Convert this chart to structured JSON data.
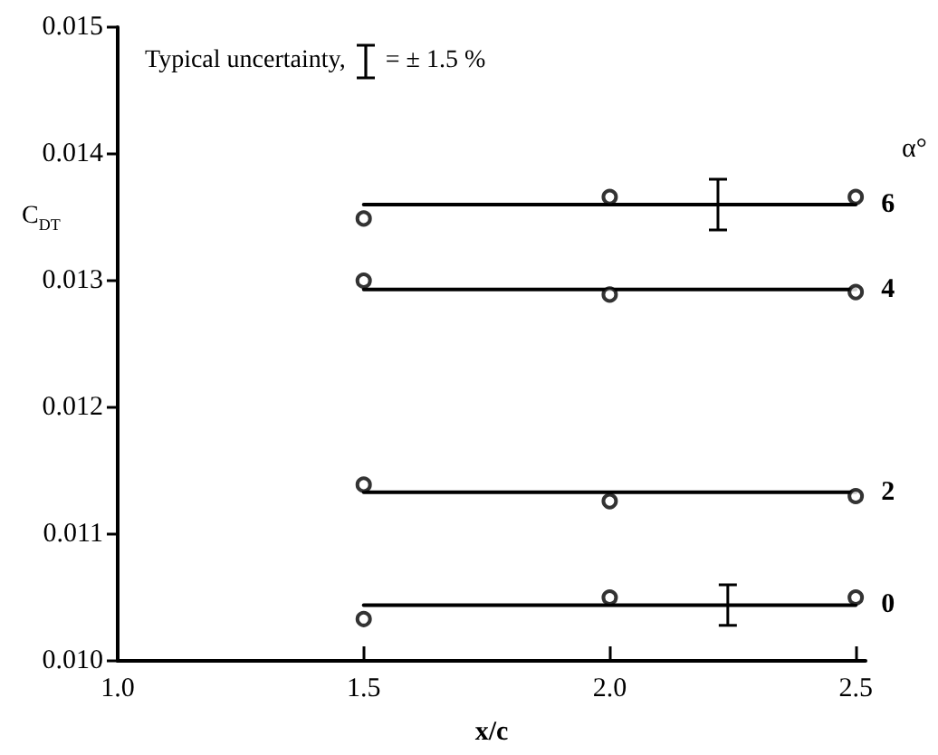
{
  "chart_data": {
    "type": "scatter",
    "xlabel": "x/c",
    "ylabel": "C$_{DT}$",
    "legend_title": "α°",
    "annotations": [
      "Typical uncertainty,",
      "= ± 1.5 %"
    ],
    "xlim": [
      1.0,
      2.52
    ],
    "xticks": [
      {
        "value": 1.0,
        "label": "1.0"
      },
      {
        "value": 1.5,
        "label": "1.5"
      },
      {
        "value": 2.0,
        "label": "2.0"
      },
      {
        "value": 2.5,
        "label": "2.5"
      }
    ],
    "ylim": [
      0.01,
      0.015
    ],
    "yticks": [
      {
        "value": 0.01,
        "label": "0.010"
      },
      {
        "value": 0.011,
        "label": "0.011"
      },
      {
        "value": 0.012,
        "label": "0.012"
      },
      {
        "value": 0.013,
        "label": "0.013"
      },
      {
        "value": 0.014,
        "label": "0.014"
      },
      {
        "value": 0.015,
        "label": "0.015"
      }
    ],
    "grid": false,
    "marker": "circle",
    "series": [
      {
        "color": "#000000",
        "x": [
          1.5,
          2.0,
          2.5
        ],
        "values": [
          0.01349,
          0.01366,
          0.01366
        ]
      },
      {
        "type": "line",
        "name": "6",
        "color": "#000000",
        "marker": "none",
        "x": [
          1.5,
          2.22,
          2.5
        ],
        "values": [
          0.0136,
          0.0136,
          0.0136
        ],
        "errors": [
          null,
          0.0002,
          null
        ]
      },
      {
        "color": "#000000",
        "x": [
          1.5,
          2.0,
          2.5
        ],
        "values": [
          0.013,
          0.01289,
          0.01291
        ]
      },
      {
        "type": "line",
        "name": "4",
        "color": "#000000",
        "marker": "none",
        "x": [
          1.5,
          2.5
        ],
        "values": [
          0.01293,
          0.01293
        ]
      },
      {
        "color": "#000000",
        "x": [
          1.5,
          2.0,
          2.5
        ],
        "values": [
          0.01139,
          0.01126,
          0.0113
        ]
      },
      {
        "type": "line",
        "name": "2",
        "color": "#000000",
        "marker": "none",
        "x": [
          1.5,
          2.5
        ],
        "values": [
          0.01133,
          0.01133
        ]
      },
      {
        "color": "#000000",
        "x": [
          1.5,
          2.0,
          2.5
        ],
        "values": [
          0.01033,
          0.0105,
          0.0105
        ]
      },
      {
        "type": "line",
        "name": "0",
        "color": "#000000",
        "marker": "none",
        "x": [
          1.5,
          2.24,
          2.5
        ],
        "values": [
          0.01044,
          0.01044,
          0.01044
        ],
        "errors": [
          null,
          0.00016,
          null
        ]
      }
    ]
  }
}
